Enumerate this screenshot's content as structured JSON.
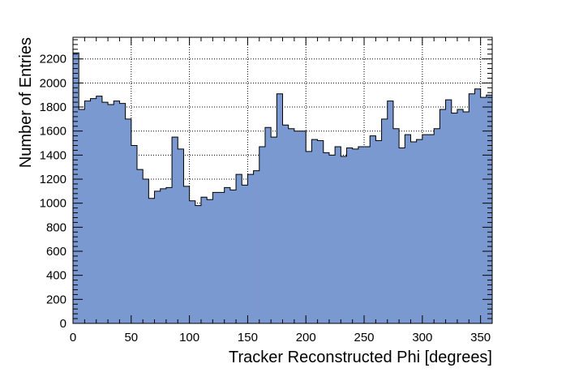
{
  "chart_data": {
    "type": "bar",
    "subtype": "histogram",
    "title": "",
    "xlabel": "Tracker Reconstructed Phi [degrees]",
    "ylabel": "Number of Entries",
    "xlim": [
      0,
      360
    ],
    "ylim": [
      0,
      2380
    ],
    "bin_width": 5,
    "x_ticks": [
      0,
      50,
      100,
      150,
      200,
      250,
      300,
      350
    ],
    "y_ticks": [
      0,
      200,
      400,
      600,
      800,
      1000,
      1200,
      1400,
      1600,
      1800,
      2000,
      2200
    ],
    "grid": true,
    "fill_color": "#7b99d1",
    "line_color": "#000000",
    "series": [
      {
        "bin_edges_start": 0,
        "values": [
          2250,
          1780,
          1850,
          1870,
          1890,
          1840,
          1820,
          1850,
          1830,
          1700,
          1480,
          1280,
          1200,
          1040,
          1100,
          1120,
          1130,
          1550,
          1450,
          1140,
          1020,
          980,
          1050,
          1030,
          1090,
          1090,
          1130,
          1110,
          1240,
          1150,
          1240,
          1270,
          1470,
          1630,
          1550,
          1910,
          1650,
          1620,
          1600,
          1600,
          1430,
          1530,
          1520,
          1420,
          1400,
          1470,
          1390,
          1460,
          1450,
          1470,
          1470,
          1560,
          1520,
          1700,
          1850,
          1620,
          1460,
          1570,
          1510,
          1530,
          1570,
          1570,
          1620,
          1780,
          1860,
          1750,
          1780,
          1760,
          1910,
          1950,
          1880,
          1900
        ]
      }
    ]
  }
}
